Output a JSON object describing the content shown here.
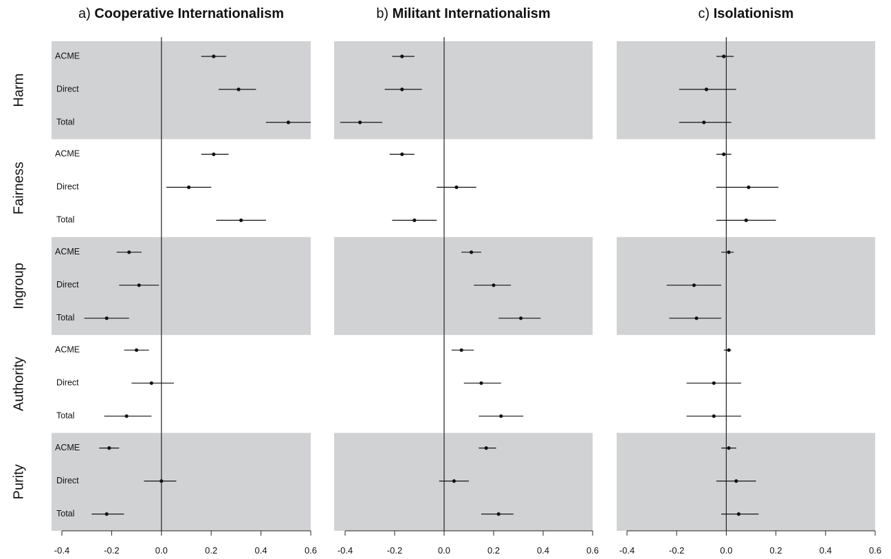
{
  "chart_data": {
    "type": "scatter",
    "subtype": "coefficient-plot-with-confidence-intervals",
    "xlim": [
      -0.4,
      0.6
    ],
    "x_ticks": [
      "-0.4",
      "-0.2",
      "0.0",
      "0.2",
      "0.4",
      "0.6"
    ],
    "shading": "alternating grey bands by foundation",
    "foundations": [
      "Harm",
      "Fairness",
      "Ingroup",
      "Authority",
      "Purity"
    ],
    "estimate_types": [
      "ACME",
      "Direct",
      "Total"
    ],
    "panels": [
      {
        "prefix": "a)",
        "title": "Cooperative Internationalism",
        "rows": {
          "Harm": {
            "ACME": [
              0.21,
              0.16,
              0.26
            ],
            "Direct": [
              0.31,
              0.23,
              0.38
            ],
            "Total": [
              0.51,
              0.42,
              0.6
            ]
          },
          "Fairness": {
            "ACME": [
              0.21,
              0.16,
              0.27
            ],
            "Direct": [
              0.11,
              0.02,
              0.2
            ],
            "Total": [
              0.32,
              0.22,
              0.42
            ]
          },
          "Ingroup": {
            "ACME": [
              -0.13,
              -0.18,
              -0.08
            ],
            "Direct": [
              -0.09,
              -0.17,
              -0.01
            ],
            "Total": [
              -0.22,
              -0.31,
              -0.13
            ]
          },
          "Authority": {
            "ACME": [
              -0.1,
              -0.15,
              -0.05
            ],
            "Direct": [
              -0.04,
              -0.12,
              0.05
            ],
            "Total": [
              -0.14,
              -0.23,
              -0.04
            ]
          },
          "Purity": {
            "ACME": [
              -0.21,
              -0.25,
              -0.17
            ],
            "Direct": [
              0.0,
              -0.07,
              0.06
            ],
            "Total": [
              -0.22,
              -0.28,
              -0.15
            ]
          }
        }
      },
      {
        "prefix": "b)",
        "title": "Militant Internationalism",
        "rows": {
          "Harm": {
            "ACME": [
              -0.17,
              -0.21,
              -0.12
            ],
            "Direct": [
              -0.17,
              -0.24,
              -0.09
            ],
            "Total": [
              -0.34,
              -0.42,
              -0.25
            ]
          },
          "Fairness": {
            "ACME": [
              -0.17,
              -0.22,
              -0.12
            ],
            "Direct": [
              0.05,
              -0.03,
              0.13
            ],
            "Total": [
              -0.12,
              -0.21,
              -0.03
            ]
          },
          "Ingroup": {
            "ACME": [
              0.11,
              0.07,
              0.15
            ],
            "Direct": [
              0.2,
              0.12,
              0.27
            ],
            "Total": [
              0.31,
              0.22,
              0.39
            ]
          },
          "Authority": {
            "ACME": [
              0.07,
              0.03,
              0.12
            ],
            "Direct": [
              0.15,
              0.08,
              0.23
            ],
            "Total": [
              0.23,
              0.14,
              0.32
            ]
          },
          "Purity": {
            "ACME": [
              0.17,
              0.14,
              0.21
            ],
            "Direct": [
              0.04,
              -0.02,
              0.1
            ],
            "Total": [
              0.22,
              0.15,
              0.28
            ]
          }
        }
      },
      {
        "prefix": "c)",
        "title": "Isolationism",
        "rows": {
          "Harm": {
            "ACME": [
              -0.01,
              -0.04,
              0.03
            ],
            "Direct": [
              -0.08,
              -0.19,
              0.04
            ],
            "Total": [
              -0.09,
              -0.19,
              0.02
            ]
          },
          "Fairness": {
            "ACME": [
              -0.01,
              -0.04,
              0.02
            ],
            "Direct": [
              0.09,
              -0.04,
              0.21
            ],
            "Total": [
              0.08,
              -0.04,
              0.2
            ]
          },
          "Ingroup": {
            "ACME": [
              0.01,
              -0.02,
              0.03
            ],
            "Direct": [
              -0.13,
              -0.24,
              -0.02
            ],
            "Total": [
              -0.12,
              -0.23,
              -0.02
            ]
          },
          "Authority": {
            "ACME": [
              0.01,
              -0.01,
              0.02
            ],
            "Direct": [
              -0.05,
              -0.16,
              0.06
            ],
            "Total": [
              -0.05,
              -0.16,
              0.06
            ]
          },
          "Purity": {
            "ACME": [
              0.01,
              -0.02,
              0.04
            ],
            "Direct": [
              0.04,
              -0.04,
              0.12
            ],
            "Total": [
              0.05,
              -0.02,
              0.13
            ]
          }
        }
      }
    ]
  }
}
